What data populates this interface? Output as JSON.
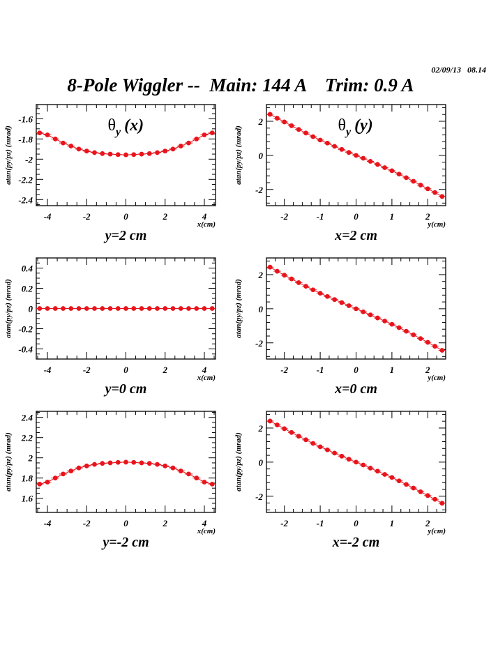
{
  "header": {
    "timestamp": "02/09/13   08.14",
    "title": "8-Pole Wiggler --  Main: 144 A    Trim: 0.9 A"
  },
  "colors": {
    "marker": "#e8141c",
    "frame": "#000000",
    "background": "#ffffff"
  },
  "chart_data": [
    {
      "type": "scatter",
      "panel": "top-left",
      "title": "θy (x)",
      "title_main": "θ",
      "title_sub": "y",
      "title_arg": "(x)",
      "caption": "y=2 cm",
      "xlabel": "x(cm)",
      "ylabel": "atan(py/pz) (mrad)",
      "xlim": [
        -4.57,
        4.57
      ],
      "ylim": [
        -2.46,
        -1.46
      ],
      "xticks": [
        -4,
        -2,
        0,
        2,
        4
      ],
      "xtick_labels": [
        "-4",
        "-2",
        "0",
        "2",
        "4"
      ],
      "yticks": [
        -2.4,
        -2.2,
        -2.0,
        -1.8,
        -1.6
      ],
      "ytick_labels": [
        "-2.4",
        "-2.2",
        "-2",
        "-1.8",
        "-1.6"
      ],
      "x": [
        -4.4,
        -4.0,
        -3.6,
        -3.2,
        -2.8,
        -2.4,
        -2.0,
        -1.6,
        -1.2,
        -0.8,
        -0.4,
        0.0,
        0.4,
        0.8,
        1.2,
        1.6,
        2.0,
        2.4,
        2.8,
        3.2,
        3.6,
        4.0,
        4.4
      ],
      "y": [
        -1.74,
        -1.76,
        -1.8,
        -1.84,
        -1.87,
        -1.9,
        -1.92,
        -1.935,
        -1.945,
        -1.95,
        -1.955,
        -1.957,
        -1.955,
        -1.95,
        -1.945,
        -1.935,
        -1.92,
        -1.9,
        -1.87,
        -1.84,
        -1.8,
        -1.76,
        -1.74
      ]
    },
    {
      "type": "scatter",
      "panel": "top-right",
      "title": "θy (y)",
      "title_main": "θ",
      "title_sub": "y",
      "title_arg": "(y)",
      "caption": "x=2 cm",
      "xlabel": "y(cm)",
      "ylabel": "atan(py/pz) (mrad)",
      "xlim": [
        -2.5,
        2.5
      ],
      "ylim": [
        -2.95,
        2.98
      ],
      "xticks": [
        -2,
        -1,
        0,
        1,
        2
      ],
      "xtick_labels": [
        "-2",
        "-1",
        "0",
        "1",
        "2"
      ],
      "yticks": [
        -2,
        0,
        2
      ],
      "ytick_labels": [
        "-2",
        "0",
        "2"
      ],
      "x": [
        -2.4,
        -2.2,
        -2.0,
        -1.8,
        -1.6,
        -1.4,
        -1.2,
        -1.0,
        -0.8,
        -0.6,
        -0.4,
        -0.2,
        0.0,
        0.2,
        0.4,
        0.6,
        0.8,
        1.0,
        1.2,
        1.4,
        1.6,
        1.8,
        2.0,
        2.2,
        2.4
      ],
      "y": [
        2.41,
        2.18,
        1.96,
        1.74,
        1.52,
        1.31,
        1.1,
        0.9,
        0.72,
        0.53,
        0.35,
        0.17,
        0.0,
        -0.17,
        -0.35,
        -0.53,
        -0.72,
        -0.9,
        -1.1,
        -1.31,
        -1.52,
        -1.74,
        -1.96,
        -2.18,
        -2.41
      ]
    },
    {
      "type": "scatter",
      "panel": "middle-left",
      "title": "",
      "caption": "y=0 cm",
      "xlabel": "x(cm)",
      "ylabel": "atan(py/pz) (mrad)",
      "xlim": [
        -4.57,
        4.57
      ],
      "ylim": [
        -0.5,
        0.5
      ],
      "xticks": [
        -4,
        -2,
        0,
        2,
        4
      ],
      "xtick_labels": [
        "-4",
        "-2",
        "0",
        "2",
        "4"
      ],
      "yticks": [
        -0.4,
        -0.2,
        0.0,
        0.2,
        0.4
      ],
      "ytick_labels": [
        "-0.4",
        "-0.2",
        "0",
        "0.2",
        "0.4"
      ],
      "x": [
        -4.4,
        -4.0,
        -3.6,
        -3.2,
        -2.8,
        -2.4,
        -2.0,
        -1.6,
        -1.2,
        -0.8,
        -0.4,
        0.0,
        0.4,
        0.8,
        1.2,
        1.6,
        2.0,
        2.4,
        2.8,
        3.2,
        3.6,
        4.0,
        4.4
      ],
      "y": [
        0,
        0,
        0,
        0,
        0,
        0,
        0,
        0,
        0,
        0,
        0,
        0,
        0,
        0,
        0,
        0,
        0,
        0,
        0,
        0,
        0,
        0,
        0
      ]
    },
    {
      "type": "scatter",
      "panel": "middle-right",
      "title": "",
      "caption": "x=0 cm",
      "xlabel": "y(cm)",
      "ylabel": "atan(py/pz) (mrad)",
      "xlim": [
        -2.5,
        2.5
      ],
      "ylim": [
        -2.95,
        2.98
      ],
      "xticks": [
        -2,
        -1,
        0,
        1,
        2
      ],
      "xtick_labels": [
        "-2",
        "-1",
        "0",
        "1",
        "2"
      ],
      "yticks": [
        -2,
        0,
        2
      ],
      "ytick_labels": [
        "-2",
        "0",
        "2"
      ],
      "x": [
        -2.4,
        -2.2,
        -2.0,
        -1.8,
        -1.6,
        -1.4,
        -1.2,
        -1.0,
        -0.8,
        -0.6,
        -0.4,
        -0.2,
        0.0,
        0.2,
        0.4,
        0.6,
        0.8,
        1.0,
        1.2,
        1.4,
        1.6,
        1.8,
        2.0,
        2.2,
        2.4
      ],
      "y": [
        2.44,
        2.2,
        1.97,
        1.75,
        1.53,
        1.32,
        1.11,
        0.91,
        0.72,
        0.54,
        0.36,
        0.18,
        0.0,
        -0.18,
        -0.36,
        -0.54,
        -0.72,
        -0.91,
        -1.11,
        -1.32,
        -1.53,
        -1.75,
        -1.97,
        -2.2,
        -2.44
      ]
    },
    {
      "type": "scatter",
      "panel": "bottom-left",
      "title": "",
      "caption": "y=-2 cm",
      "xlabel": "x(cm)",
      "ylabel": "atan(py/pz) (mrad)",
      "xlim": [
        -4.57,
        4.57
      ],
      "ylim": [
        1.46,
        2.46
      ],
      "xticks": [
        -4,
        -2,
        0,
        2,
        4
      ],
      "xtick_labels": [
        "-4",
        "-2",
        "0",
        "2",
        "4"
      ],
      "yticks": [
        1.6,
        1.8,
        2.0,
        2.2,
        2.4
      ],
      "ytick_labels": [
        "1.6",
        "1.8",
        "2",
        "2.2",
        "2.4"
      ],
      "x": [
        -4.4,
        -4.0,
        -3.6,
        -3.2,
        -2.8,
        -2.4,
        -2.0,
        -1.6,
        -1.2,
        -0.8,
        -0.4,
        0.0,
        0.4,
        0.8,
        1.2,
        1.6,
        2.0,
        2.4,
        2.8,
        3.2,
        3.6,
        4.0,
        4.4
      ],
      "y": [
        1.74,
        1.76,
        1.8,
        1.84,
        1.87,
        1.9,
        1.92,
        1.935,
        1.945,
        1.95,
        1.955,
        1.957,
        1.955,
        1.95,
        1.945,
        1.935,
        1.92,
        1.9,
        1.87,
        1.84,
        1.8,
        1.76,
        1.74
      ]
    },
    {
      "type": "scatter",
      "panel": "bottom-right",
      "title": "",
      "caption": "x=-2 cm",
      "xlabel": "y(cm)",
      "ylabel": "atan(py/pz) (mrad)",
      "xlim": [
        -2.5,
        2.5
      ],
      "ylim": [
        -2.95,
        2.98
      ],
      "xticks": [
        -2,
        -1,
        0,
        1,
        2
      ],
      "xtick_labels": [
        "-2",
        "-1",
        "0",
        "1",
        "2"
      ],
      "yticks": [
        -2,
        0,
        2
      ],
      "ytick_labels": [
        "-2",
        "0",
        "2"
      ],
      "x": [
        -2.4,
        -2.2,
        -2.0,
        -1.8,
        -1.6,
        -1.4,
        -1.2,
        -1.0,
        -0.8,
        -0.6,
        -0.4,
        -0.2,
        0.0,
        0.2,
        0.4,
        0.6,
        0.8,
        1.0,
        1.2,
        1.4,
        1.6,
        1.8,
        2.0,
        2.2,
        2.4
      ],
      "y": [
        2.41,
        2.18,
        1.96,
        1.74,
        1.52,
        1.31,
        1.1,
        0.9,
        0.72,
        0.53,
        0.35,
        0.17,
        0.0,
        -0.17,
        -0.35,
        -0.53,
        -0.72,
        -0.9,
        -1.1,
        -1.31,
        -1.52,
        -1.74,
        -1.96,
        -2.18,
        -2.41
      ]
    }
  ]
}
